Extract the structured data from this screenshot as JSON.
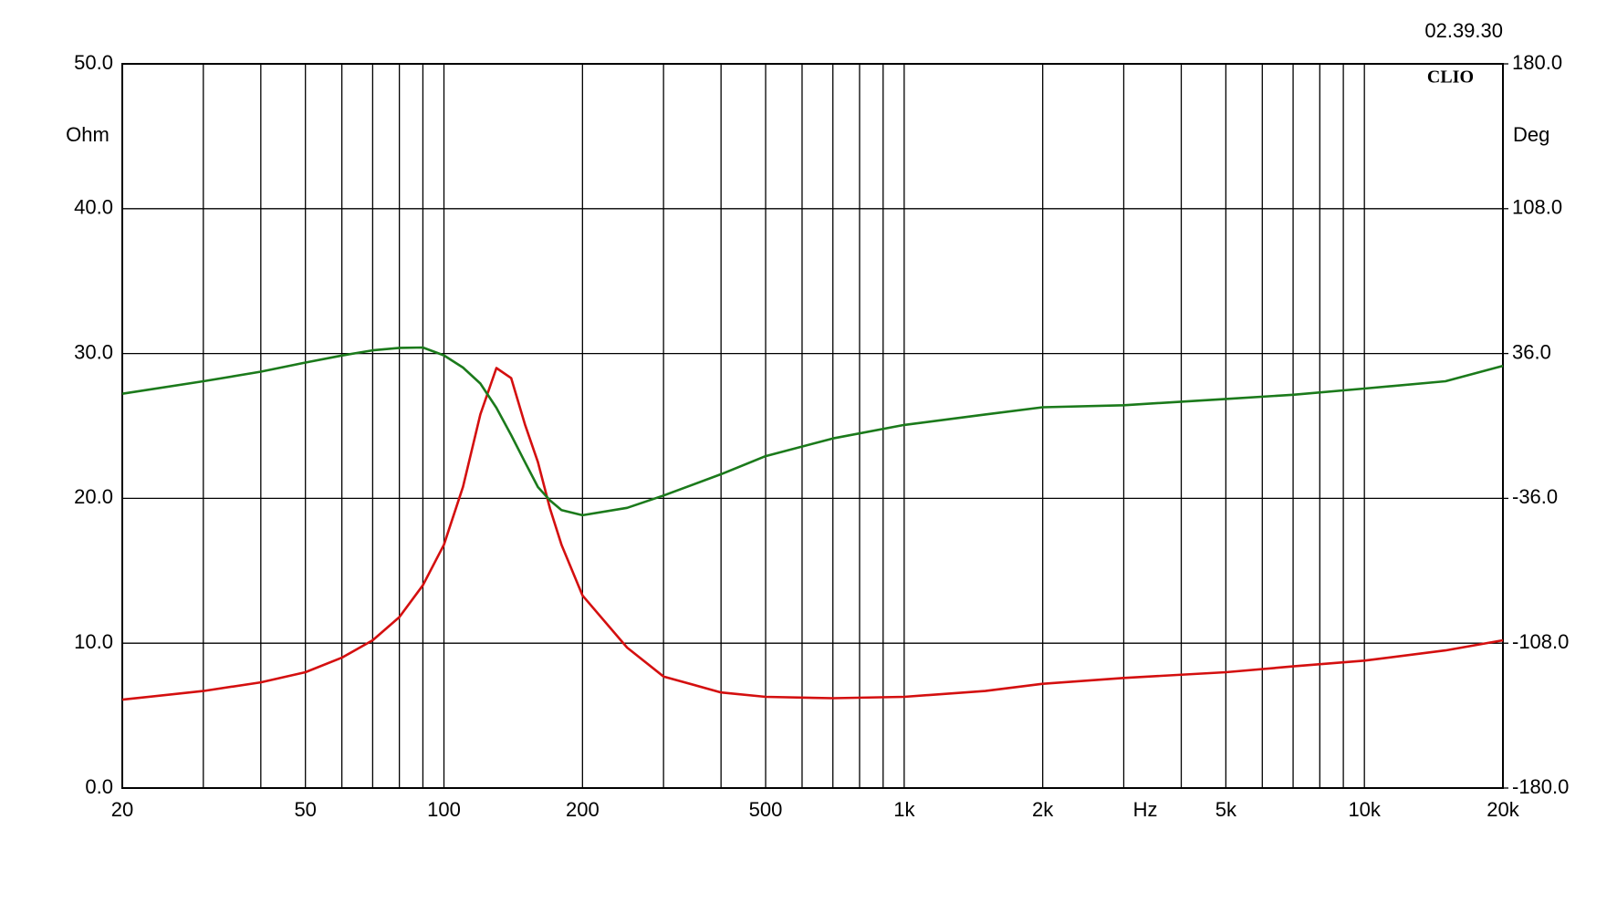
{
  "chart_data": {
    "type": "line",
    "timestamp": "02.39.30",
    "logo": "CLIO",
    "y_label": "Ohm",
    "y2_label": "Deg",
    "x_label": "Hz",
    "xscale": "log",
    "xlim": [
      20,
      20000
    ],
    "xticks": [
      20,
      50,
      100,
      200,
      500,
      {
        "value": 1000,
        "label": "1k"
      },
      {
        "value": 2000,
        "label": "2k"
      },
      {
        "value": 5000,
        "label": "5k"
      },
      {
        "value": 10000,
        "label": "10k"
      },
      {
        "value": 20000,
        "label": "20k"
      }
    ],
    "xgrid": [
      30,
      40,
      60,
      70,
      80,
      90,
      300,
      400,
      600,
      700,
      800,
      900,
      3000,
      4000,
      6000,
      7000,
      8000,
      9000
    ],
    "ylim": [
      0,
      50
    ],
    "yticks": [
      {
        "value": 0,
        "label": "0.0"
      },
      {
        "value": 10,
        "label": "10.0"
      },
      {
        "value": 20,
        "label": "20.0"
      },
      {
        "value": 30,
        "label": "30.0"
      },
      {
        "value": 40,
        "label": "40.0"
      },
      {
        "value": 50,
        "label": "50.0"
      }
    ],
    "y2lim": [
      -180,
      180
    ],
    "y2ticks": [
      {
        "value": -180,
        "label": "-180.0"
      },
      {
        "value": -108,
        "label": "-108.0"
      },
      {
        "value": -36,
        "label": "-36.0"
      },
      {
        "value": 36,
        "label": "36.0"
      },
      {
        "value": 108,
        "label": "108.0"
      },
      {
        "value": 180,
        "label": "180.0"
      }
    ],
    "grid": true,
    "x": [
      20,
      30,
      40,
      50,
      60,
      70,
      80,
      90,
      100,
      110,
      120,
      130,
      140,
      150,
      160,
      170,
      180,
      200,
      250,
      300,
      400,
      500,
      700,
      1000,
      1500,
      2000,
      3000,
      5000,
      7000,
      10000,
      15000,
      20000
    ],
    "series": [
      {
        "color": "#d40f0f",
        "values": [
          6.1,
          6.7,
          7.3,
          8.0,
          9.0,
          10.2,
          11.8,
          14.0,
          16.8,
          20.8,
          25.8,
          29.0,
          28.3,
          25.1,
          22.5,
          19.3,
          16.8,
          13.3,
          9.7,
          7.7,
          6.6,
          6.3,
          6.2,
          6.3,
          6.7,
          7.2,
          7.6,
          8.0,
          8.4,
          8.8,
          9.5,
          10.2
        ]
      },
      {
        "color": "#1b7a1b",
        "axis": "y2",
        "values": [
          16.0,
          22.2,
          27.0,
          31.5,
          35.0,
          37.6,
          38.8,
          39.0,
          35.1,
          29.0,
          21.1,
          9.0,
          -4.6,
          -18.0,
          -30.4,
          -37.0,
          -41.8,
          -44.4,
          -40.7,
          -34.6,
          -24.0,
          -15.0,
          -6.2,
          0.5,
          5.7,
          9.3,
          10.3,
          13.4,
          15.5,
          18.6,
          22.2,
          29.9
        ]
      }
    ]
  }
}
